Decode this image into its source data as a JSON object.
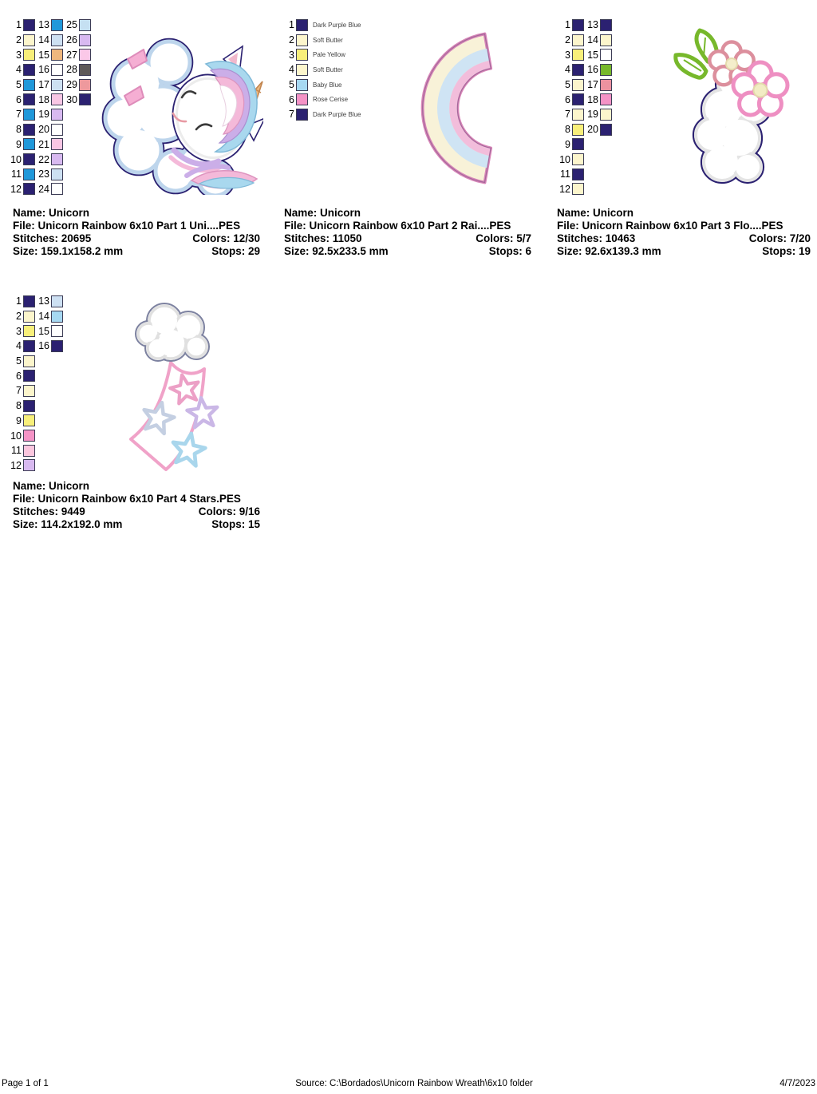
{
  "designs": [
    {
      "name_line": "Name: Unicorn",
      "file_line": "File: Unicorn Rainbow 6x10 Part 1 Uni....PES",
      "stitches_line": "Stitches: 20695",
      "colors_line": "Colors: 12/30",
      "size_line": "Size: 159.1x158.2 mm",
      "stops_line": "Stops: 29",
      "thumbnail": "unicorn-sleeping-on-cloud",
      "palette": [
        {
          "n": 1,
          "color": "#2b2171"
        },
        {
          "n": 2,
          "color": "#fcf5cc"
        },
        {
          "n": 3,
          "color": "#f8ef7a"
        },
        {
          "n": 4,
          "color": "#2b2171"
        },
        {
          "n": 5,
          "color": "#2098da"
        },
        {
          "n": 6,
          "color": "#2b2171"
        },
        {
          "n": 7,
          "color": "#2098da"
        },
        {
          "n": 8,
          "color": "#2b2171"
        },
        {
          "n": 9,
          "color": "#2098da"
        },
        {
          "n": 10,
          "color": "#2b2171"
        },
        {
          "n": 11,
          "color": "#2098da"
        },
        {
          "n": 12,
          "color": "#2b2171"
        },
        {
          "n": 13,
          "color": "#2098da"
        },
        {
          "n": 14,
          "color": "#cde0f2"
        },
        {
          "n": 15,
          "color": "#efb77e"
        },
        {
          "n": 16,
          "color": "#ffffff"
        },
        {
          "n": 17,
          "color": "#cde0f2"
        },
        {
          "n": 18,
          "color": "#f9c6e4"
        },
        {
          "n": 19,
          "color": "#d8b9f0"
        },
        {
          "n": 20,
          "color": "#ffffff"
        },
        {
          "n": 21,
          "color": "#f9c6e4"
        },
        {
          "n": 22,
          "color": "#d8b9f0"
        },
        {
          "n": 23,
          "color": "#cde0f2"
        },
        {
          "n": 24,
          "color": "#ffffff"
        },
        {
          "n": 25,
          "color": "#c5e0f2"
        },
        {
          "n": 26,
          "color": "#d8b9f0"
        },
        {
          "n": 27,
          "color": "#fbc8e8"
        },
        {
          "n": 28,
          "color": "#5e5a58"
        },
        {
          "n": 29,
          "color": "#ee999d"
        },
        {
          "n": 30,
          "color": "#2b2171"
        }
      ]
    },
    {
      "name_line": "Name: Unicorn",
      "file_line": "File: Unicorn Rainbow 6x10 Part 2 Rai....PES",
      "stitches_line": "Stitches: 11050",
      "colors_line": "Colors: 5/7",
      "size_line": "Size: 92.5x233.5 mm",
      "stops_line": "Stops: 6",
      "thumbnail": "rainbow-arc",
      "palette": [
        {
          "n": 1,
          "color": "#2b2171",
          "label": "Dark Purple Blue"
        },
        {
          "n": 2,
          "color": "#fcf5cc",
          "label": "Soft Butter"
        },
        {
          "n": 3,
          "color": "#f8ef7a",
          "label": "Pale Yellow"
        },
        {
          "n": 4,
          "color": "#fcf5cc",
          "label": "Soft Butter"
        },
        {
          "n": 5,
          "color": "#a6d8f2",
          "label": "Baby Blue"
        },
        {
          "n": 6,
          "color": "#f593c6",
          "label": "Rose Cerise"
        },
        {
          "n": 7,
          "color": "#2b2171",
          "label": "Dark Purple Blue"
        }
      ]
    },
    {
      "name_line": "Name: Unicorn",
      "file_line": "File: Unicorn Rainbow 6x10 Part 3 Flo....PES",
      "stitches_line": "Stitches: 10463",
      "colors_line": "Colors: 7/20",
      "size_line": "Size: 92.6x139.3 mm",
      "stops_line": "Stops: 19",
      "thumbnail": "flower-cloud",
      "palette": [
        {
          "n": 1,
          "color": "#2b2171"
        },
        {
          "n": 2,
          "color": "#fcf5cc"
        },
        {
          "n": 3,
          "color": "#f8ef7a"
        },
        {
          "n": 4,
          "color": "#2b2171"
        },
        {
          "n": 5,
          "color": "#fcf5cc"
        },
        {
          "n": 6,
          "color": "#2b2171"
        },
        {
          "n": 7,
          "color": "#fcf5cc"
        },
        {
          "n": 8,
          "color": "#f8ef7a"
        },
        {
          "n": 9,
          "color": "#2b2171"
        },
        {
          "n": 10,
          "color": "#fcf5cc"
        },
        {
          "n": 11,
          "color": "#2b2171"
        },
        {
          "n": 12,
          "color": "#fcf5cc"
        },
        {
          "n": 13,
          "color": "#2b2171"
        },
        {
          "n": 14,
          "color": "#fcf5cc"
        },
        {
          "n": 15,
          "color": "#ffffff"
        },
        {
          "n": 16,
          "color": "#77b82b"
        },
        {
          "n": 17,
          "color": "#ec92a0"
        },
        {
          "n": 18,
          "color": "#f593c6"
        },
        {
          "n": 19,
          "color": "#fcf5cc"
        },
        {
          "n": 20,
          "color": "#2b2171"
        }
      ]
    },
    {
      "name_line": "Name: Unicorn",
      "file_line": "File: Unicorn Rainbow 6x10 Part 4 Stars.PES",
      "stitches_line": "Stitches: 9449",
      "colors_line": "Colors: 9/16",
      "size_line": "Size: 114.2x192.0 mm",
      "stops_line": "Stops: 15",
      "thumbnail": "shooting-stars-cloud",
      "palette": [
        {
          "n": 1,
          "color": "#2b2171"
        },
        {
          "n": 2,
          "color": "#fcf5cc"
        },
        {
          "n": 3,
          "color": "#f8ef7a"
        },
        {
          "n": 4,
          "color": "#2b2171"
        },
        {
          "n": 5,
          "color": "#fcf5cc"
        },
        {
          "n": 6,
          "color": "#2b2171"
        },
        {
          "n": 7,
          "color": "#fcf5cc"
        },
        {
          "n": 8,
          "color": "#2b2171"
        },
        {
          "n": 9,
          "color": "#f8ef7a"
        },
        {
          "n": 10,
          "color": "#f593c6"
        },
        {
          "n": 11,
          "color": "#fbc6de"
        },
        {
          "n": 12,
          "color": "#d8b9f0"
        },
        {
          "n": 13,
          "color": "#cde0f2"
        },
        {
          "n": 14,
          "color": "#a6d8f2"
        },
        {
          "n": 15,
          "color": "#ffffff"
        },
        {
          "n": 16,
          "color": "#2b2171"
        }
      ]
    }
  ],
  "footer": {
    "page_label": "Page 1 of 1",
    "source": "Source: C:\\Bordados\\Unicorn Rainbow Wreath\\6x10 folder",
    "date": "4/7/2023"
  }
}
